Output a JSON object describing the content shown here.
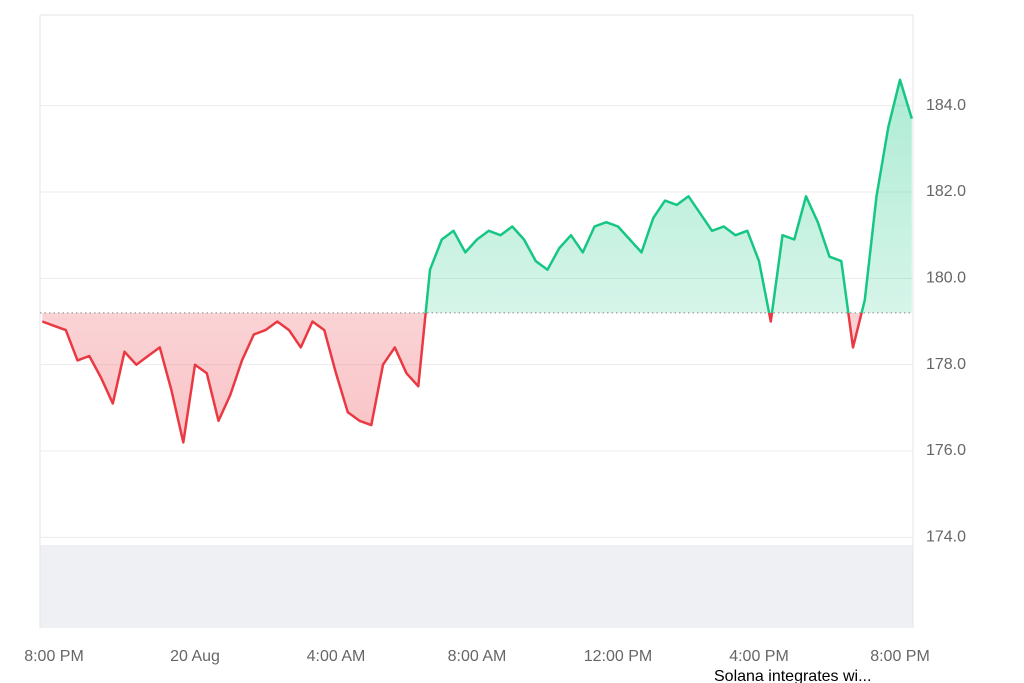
{
  "chart_data": {
    "type": "line",
    "values": [
      179.0,
      178.9,
      178.8,
      178.1,
      178.2,
      177.7,
      177.1,
      178.3,
      178.0,
      178.2,
      178.4,
      177.4,
      176.2,
      178.0,
      177.8,
      176.7,
      177.3,
      178.1,
      178.7,
      178.8,
      179.0,
      178.8,
      178.4,
      179.0,
      178.8,
      177.8,
      176.9,
      176.7,
      176.6,
      178.0,
      178.4,
      177.8,
      177.5,
      180.2,
      180.9,
      181.1,
      180.6,
      180.9,
      181.1,
      181.0,
      181.2,
      180.9,
      180.4,
      180.2,
      180.7,
      181.0,
      180.6,
      181.2,
      181.3,
      181.2,
      180.9,
      180.6,
      181.4,
      181.8,
      181.7,
      181.9,
      181.5,
      181.1,
      181.2,
      181.0,
      181.1,
      180.4,
      179.0,
      181.0,
      180.9,
      181.9,
      181.3,
      180.5,
      180.4,
      178.4,
      179.5,
      181.9,
      183.5,
      184.6,
      183.7
    ],
    "baseline": 179.2,
    "up_color": "#16c784",
    "down_color": "#ea3943",
    "ylim": [
      171.9,
      186.1
    ],
    "yticks": [
      {
        "value": 174,
        "label": "174.0"
      },
      {
        "value": 176,
        "label": "176.0"
      },
      {
        "value": 178,
        "label": "178.0"
      },
      {
        "value": 180,
        "label": "180.0"
      },
      {
        "value": 182,
        "label": "182.0"
      },
      {
        "value": 184,
        "label": "184.0"
      }
    ],
    "xticks": [
      {
        "value": 1,
        "label": "8:00 PM"
      },
      {
        "value": 13,
        "label": "20 Aug"
      },
      {
        "value": 25,
        "label": "4:00 AM"
      },
      {
        "value": 37,
        "label": "8:00 AM"
      },
      {
        "value": 49,
        "label": "12:00 PM"
      },
      {
        "value": 61,
        "label": "4:00 PM"
      },
      {
        "value": 73,
        "label": "8:00 PM"
      }
    ],
    "grid": true,
    "annotation": "Solana integrates wi..."
  }
}
